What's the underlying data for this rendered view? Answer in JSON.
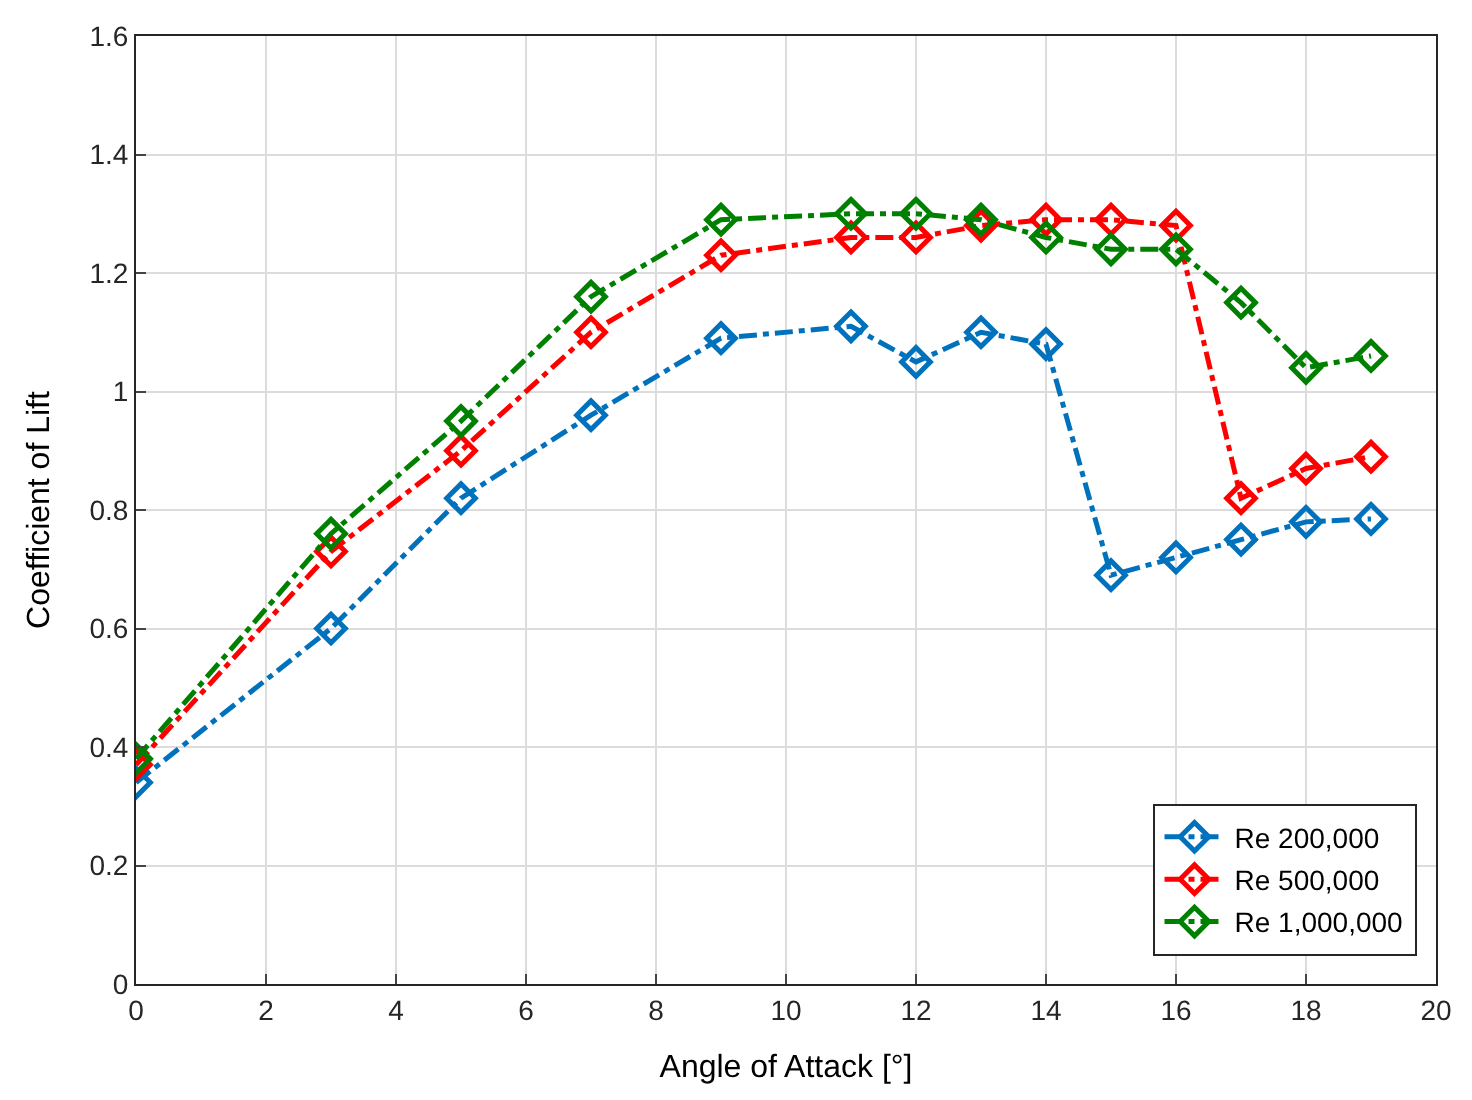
{
  "chart_data": {
    "type": "line",
    "xlabel": "Angle of Attack [°]",
    "ylabel": "Coefficient of Lift",
    "x": [
      0,
      3,
      5,
      7,
      9,
      11,
      12,
      13,
      14,
      15,
      16,
      17,
      18,
      19
    ],
    "series": [
      {
        "name": "Re 200,000",
        "color": "#0072bd",
        "values": [
          0.34,
          0.6,
          0.82,
          0.96,
          1.09,
          1.11,
          1.05,
          1.1,
          1.08,
          0.69,
          0.72,
          0.75,
          0.78,
          0.785
        ]
      },
      {
        "name": "Re 500,000",
        "color": "#ff0000",
        "values": [
          0.37,
          0.73,
          0.9,
          1.1,
          1.23,
          1.26,
          1.26,
          1.28,
          1.29,
          1.29,
          1.28,
          0.82,
          0.87,
          0.89
        ]
      },
      {
        "name": "Re 1,000,000",
        "color": "#008000",
        "values": [
          0.38,
          0.76,
          0.95,
          1.16,
          1.29,
          1.3,
          1.3,
          1.29,
          1.26,
          1.24,
          1.24,
          1.15,
          1.04,
          1.06
        ]
      }
    ],
    "xlim": [
      0,
      20
    ],
    "xticks": [
      0,
      2,
      4,
      6,
      8,
      10,
      12,
      14,
      16,
      18,
      20
    ],
    "ylim": [
      0,
      1.6
    ],
    "yticks": [
      0,
      0.2,
      0.4,
      0.6,
      0.8,
      1,
      1.2,
      1.4,
      1.6
    ],
    "grid": true,
    "legend": "bottom right",
    "marker": "diamond",
    "line_style": "dashed"
  }
}
